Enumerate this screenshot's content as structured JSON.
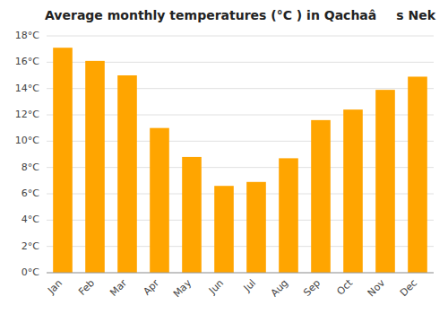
{
  "chart_data": {
    "type": "bar",
    "title": "Average monthly temperatures (°C ) in Qachaâs Nek",
    "categories": [
      "Jan",
      "Feb",
      "Mar",
      "Apr",
      "May",
      "Jun",
      "Jul",
      "Aug",
      "Sep",
      "Oct",
      "Nov",
      "Dec"
    ],
    "values": [
      17.1,
      16.1,
      15.0,
      11.0,
      8.8,
      6.6,
      6.9,
      8.7,
      11.6,
      12.4,
      13.9,
      14.9
    ],
    "color": "#FFA500",
    "ylim": [
      0,
      18
    ],
    "yticks": [
      {
        "value": 0,
        "label": "0°C"
      },
      {
        "value": 2,
        "label": "2°C"
      },
      {
        "value": 4,
        "label": "4°C"
      },
      {
        "value": 6,
        "label": "6°C"
      },
      {
        "value": 8,
        "label": "8°C"
      },
      {
        "value": 10,
        "label": "10°C"
      },
      {
        "value": 12,
        "label": "12°C"
      },
      {
        "value": 14,
        "label": "14°C"
      },
      {
        "value": 16,
        "label": "16°C"
      },
      {
        "value": 18,
        "label": "18°C"
      }
    ],
    "grid": true
  }
}
